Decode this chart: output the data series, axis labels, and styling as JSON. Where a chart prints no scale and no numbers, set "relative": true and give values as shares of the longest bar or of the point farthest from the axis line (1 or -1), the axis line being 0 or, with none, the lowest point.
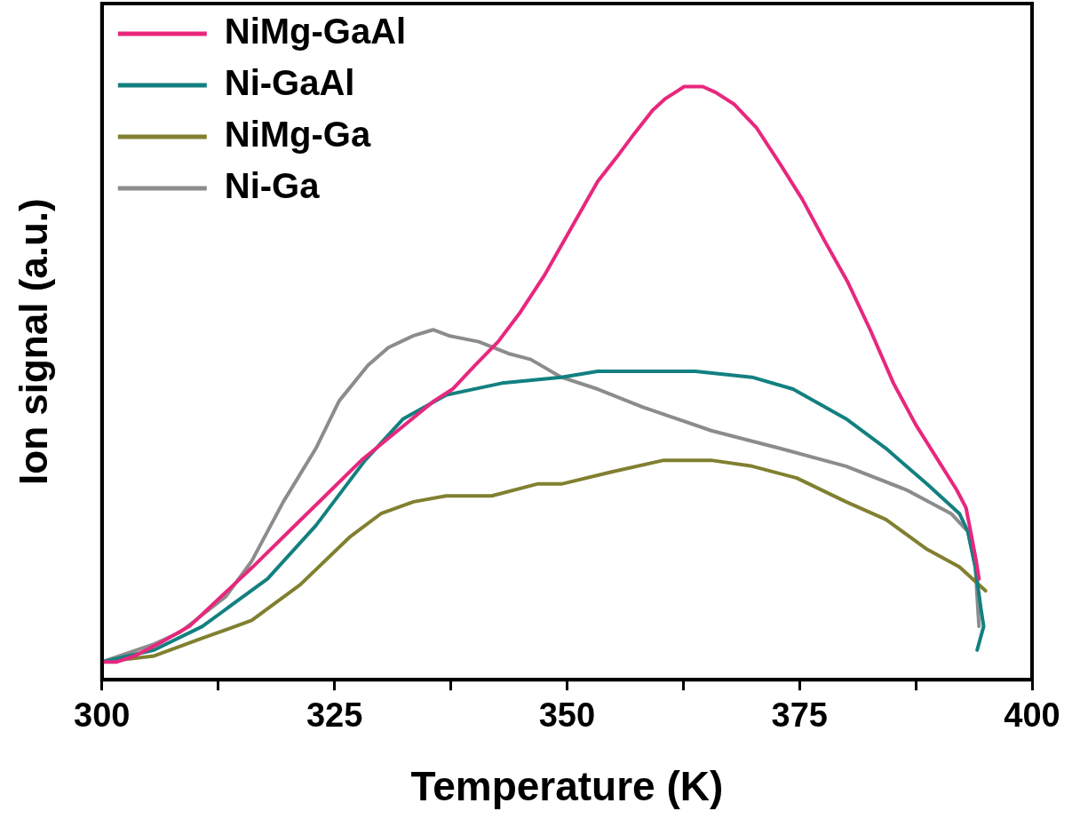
{
  "chart_data": {
    "type": "line",
    "xlabel": "Temperature (K)",
    "ylabel": "Ion signal (a.u.)",
    "relative": true,
    "xlim": [
      300,
      400
    ],
    "xticks": [
      300,
      {
        "value": 312.5,
        "label": null
      },
      325,
      {
        "value": 337.5,
        "label": null
      },
      350,
      {
        "value": 362.5,
        "label": null
      },
      375,
      {
        "value": 387.5,
        "label": null
      },
      400
    ],
    "tick_labels": "x",
    "grid": false,
    "legend": "top left",
    "marker": "none",
    "line_style": "solid",
    "series": [
      {
        "name": "NiMg-GaAl",
        "color": "#e8277d",
        "x": [
          300,
          301.6,
          303.5,
          306.0,
          309.4,
          312.8,
          316.2,
          320.1,
          324.0,
          327.9,
          331.8,
          335.7,
          337.7,
          340.1,
          342.6,
          345.0,
          347.5,
          350.4,
          353.3,
          355.3,
          357.2,
          359.2,
          360.6,
          362.6,
          364.6,
          366.0,
          368.0,
          370.4,
          372.9,
          375.3,
          377.7,
          380.2,
          382.6,
          385.1,
          387.5,
          389.9,
          391.9,
          392.9,
          393.4,
          394.0,
          394.3
        ],
        "values": [
          0.03,
          0.03,
          0.04,
          0.06,
          0.09,
          0.14,
          0.19,
          0.25,
          0.31,
          0.37,
          0.42,
          0.47,
          0.49,
          0.53,
          0.57,
          0.62,
          0.68,
          0.76,
          0.84,
          0.88,
          0.92,
          0.96,
          0.98,
          1.0,
          1.0,
          0.99,
          0.97,
          0.93,
          0.87,
          0.81,
          0.74,
          0.67,
          0.59,
          0.5,
          0.43,
          0.37,
          0.32,
          0.29,
          0.25,
          0.2,
          0.17
        ]
      },
      {
        "name": "Ni-GaAl",
        "color": "#138080",
        "x": [
          300,
          305.6,
          310.8,
          317.8,
          323.0,
          328.3,
          332.4,
          337.0,
          343.0,
          349.4,
          353.3,
          359.0,
          363.8,
          369.9,
          374.3,
          380.0,
          384.3,
          388.7,
          392.2,
          393.1,
          393.9,
          394.5,
          394.8,
          394.1
        ],
        "values": [
          0.03,
          0.05,
          0.09,
          0.17,
          0.26,
          0.37,
          0.44,
          0.48,
          0.5,
          0.51,
          0.52,
          0.52,
          0.52,
          0.51,
          0.49,
          0.44,
          0.39,
          0.33,
          0.28,
          0.25,
          0.19,
          0.12,
          0.09,
          0.05
        ]
      },
      {
        "name": "NiMg-Ga",
        "color": "#808030",
        "x": [
          300,
          305.6,
          310.8,
          316.1,
          321.3,
          326.6,
          330.0,
          333.5,
          337.0,
          341.9,
          346.8,
          349.4,
          354.7,
          360.4,
          365.5,
          369.9,
          374.7,
          380.0,
          384.3,
          388.7,
          392.2,
          395.0
        ],
        "values": [
          0.03,
          0.04,
          0.07,
          0.1,
          0.16,
          0.24,
          0.28,
          0.3,
          0.31,
          0.31,
          0.33,
          0.33,
          0.35,
          0.37,
          0.37,
          0.36,
          0.34,
          0.3,
          0.27,
          0.22,
          0.19,
          0.15
        ]
      },
      {
        "name": "Ni-Ga",
        "color": "#8c8c8c",
        "x": [
          300,
          305.6,
          308.4,
          313.3,
          316.1,
          319.5,
          323.0,
          325.5,
          328.6,
          330.8,
          333.5,
          335.6,
          337.3,
          340.5,
          343.7,
          346.1,
          349.4,
          353.3,
          358.1,
          365.5,
          372.9,
          380.0,
          386.5,
          391.3,
          393.1,
          393.9,
          394.3
        ],
        "values": [
          0.03,
          0.06,
          0.08,
          0.14,
          0.2,
          0.3,
          0.39,
          0.47,
          0.53,
          0.56,
          0.58,
          0.59,
          0.58,
          0.57,
          0.55,
          0.54,
          0.51,
          0.49,
          0.46,
          0.42,
          0.39,
          0.36,
          0.32,
          0.28,
          0.25,
          0.19,
          0.09
        ]
      }
    ]
  }
}
